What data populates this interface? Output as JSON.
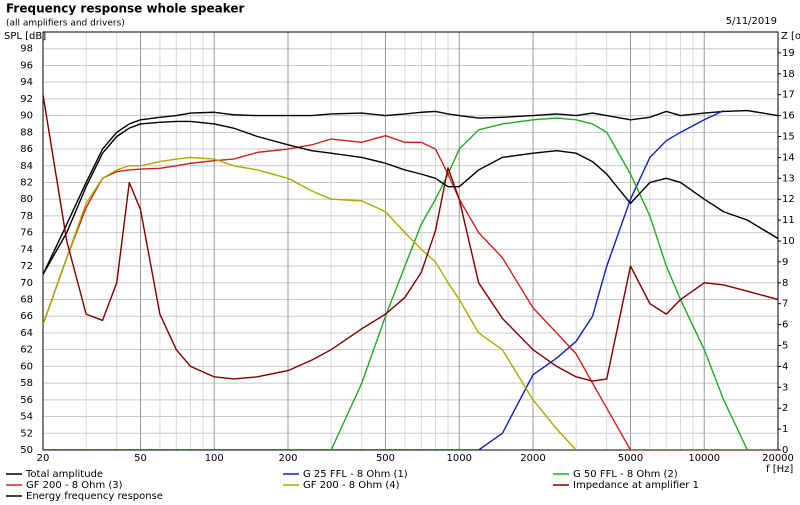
{
  "chart_data": {
    "type": "line",
    "title": "Frequency response whole speaker",
    "subtitle": "(all amplifiers and drivers)",
    "date": "5/11/2019",
    "y_label": "SPL [dB]",
    "y2_label": "Z [oh",
    "x_label": "f [Hz]",
    "log_x": true,
    "grid": true,
    "x_minor_grid": true,
    "xlim": [
      20,
      20000
    ],
    "xticks": [
      20,
      50,
      100,
      200,
      500,
      1000,
      2000,
      5000,
      10000,
      20000
    ],
    "ylim": [
      50,
      100
    ],
    "yticks": [
      50,
      52,
      54,
      56,
      58,
      60,
      62,
      64,
      66,
      68,
      70,
      72,
      74,
      76,
      78,
      80,
      82,
      84,
      86,
      88,
      90,
      92,
      94,
      96,
      98
    ],
    "y2lim": [
      0,
      20
    ],
    "y2ticks": [
      0,
      1,
      2,
      3,
      4,
      5,
      6,
      7,
      8,
      9,
      10,
      11,
      12,
      13,
      14,
      15,
      16,
      17,
      18,
      19
    ],
    "x": [
      20,
      25,
      30,
      35,
      40,
      45,
      50,
      60,
      70,
      80,
      100,
      120,
      150,
      200,
      250,
      300,
      400,
      500,
      600,
      700,
      800,
      900,
      1000,
      1200,
      1500,
      2000,
      2500,
      3000,
      3500,
      4000,
      5000,
      6000,
      7000,
      8000,
      10000,
      12000,
      15000,
      20000
    ],
    "series": [
      {
        "name": "Total amplitude",
        "color": "#000000",
        "values": [
          71,
          77,
          82,
          86,
          88,
          89,
          89.5,
          89.8,
          90,
          90.3,
          90.4,
          90.1,
          90,
          90,
          90,
          90.2,
          90.3,
          90,
          90.2,
          90.4,
          90.5,
          90.2,
          90,
          89.7,
          89.8,
          90,
          90.2,
          90,
          90.3,
          90,
          89.5,
          89.8,
          90.5,
          90,
          90.3,
          90.5,
          90.6,
          90
        ]
      },
      {
        "name": "G 25 FFL - 8 Ohm (1)",
        "color": "#1020c0",
        "values": [
          50,
          50,
          50,
          50,
          50,
          50,
          50,
          50,
          50,
          50,
          50,
          50,
          50,
          50,
          50,
          50,
          50,
          50,
          50,
          50,
          50,
          50,
          50,
          50,
          52,
          59,
          61,
          63,
          66,
          72,
          80,
          85,
          87,
          88,
          89.5,
          90.6,
          null,
          null
        ]
      },
      {
        "name": "G 50 FFL - 8 Ohm (2)",
        "color": "#22aa22",
        "values": [
          null,
          null,
          null,
          null,
          null,
          null,
          null,
          null,
          null,
          null,
          null,
          null,
          null,
          null,
          null,
          50,
          58,
          66,
          72,
          77,
          80,
          83,
          86,
          88.3,
          89,
          89.5,
          89.7,
          89.5,
          89,
          88,
          83,
          78,
          72,
          68,
          62,
          56,
          50,
          null
        ]
      },
      {
        "name": "GF 200 - 8 Ohm (3)",
        "color": "#cc2222",
        "values": [
          65,
          73,
          79,
          82.5,
          83.3,
          83.5,
          83.6,
          83.7,
          84,
          84.3,
          84.6,
          84.8,
          85.6,
          86,
          86.5,
          87.2,
          86.8,
          87.6,
          86.8,
          86.8,
          86,
          83,
          80,
          76,
          73,
          67,
          64,
          61.5,
          58,
          55,
          50,
          50,
          50,
          50,
          50,
          50,
          50,
          50
        ]
      },
      {
        "name": "GF 200 - 8 Ohm (4)",
        "color": "#aaaa00",
        "values": [
          65,
          73,
          79.5,
          82.5,
          83.5,
          84,
          84,
          84.5,
          84.8,
          85,
          84.8,
          84,
          83.5,
          82.5,
          81,
          80,
          79.8,
          78.5,
          76,
          74,
          72.5,
          70,
          68,
          64,
          62,
          56,
          52.5,
          50,
          null,
          null,
          null,
          null,
          null,
          null,
          null,
          null,
          null,
          null
        ]
      },
      {
        "name": "Impedance at amplifier 1",
        "color": "#800000",
        "axis": "y2",
        "values": [
          17,
          10,
          6.5,
          6.2,
          8,
          12.8,
          11.5,
          6.5,
          4.8,
          4,
          3.5,
          3.4,
          3.5,
          3.8,
          4.3,
          4.8,
          5.8,
          6.5,
          7.3,
          8.5,
          10.5,
          13.5,
          12,
          8,
          6.3,
          4.8,
          4,
          3.5,
          3.3,
          3.4,
          8.8,
          7,
          6.5,
          7.2,
          8,
          7.9,
          7.6,
          7.2
        ]
      },
      {
        "name": "Energy frequency response",
        "color": "#000000",
        "values": [
          71,
          76,
          81.5,
          85.5,
          87.5,
          88.5,
          89,
          89.2,
          89.3,
          89.3,
          89,
          88.5,
          87.5,
          86.5,
          85.8,
          85.5,
          85,
          84.3,
          83.5,
          83,
          82.5,
          81.5,
          81.5,
          83.5,
          85,
          85.5,
          85.8,
          85.5,
          84.5,
          83,
          79.5,
          82,
          82.5,
          82,
          80,
          78.5,
          77.5,
          75.3
        ]
      }
    ]
  }
}
